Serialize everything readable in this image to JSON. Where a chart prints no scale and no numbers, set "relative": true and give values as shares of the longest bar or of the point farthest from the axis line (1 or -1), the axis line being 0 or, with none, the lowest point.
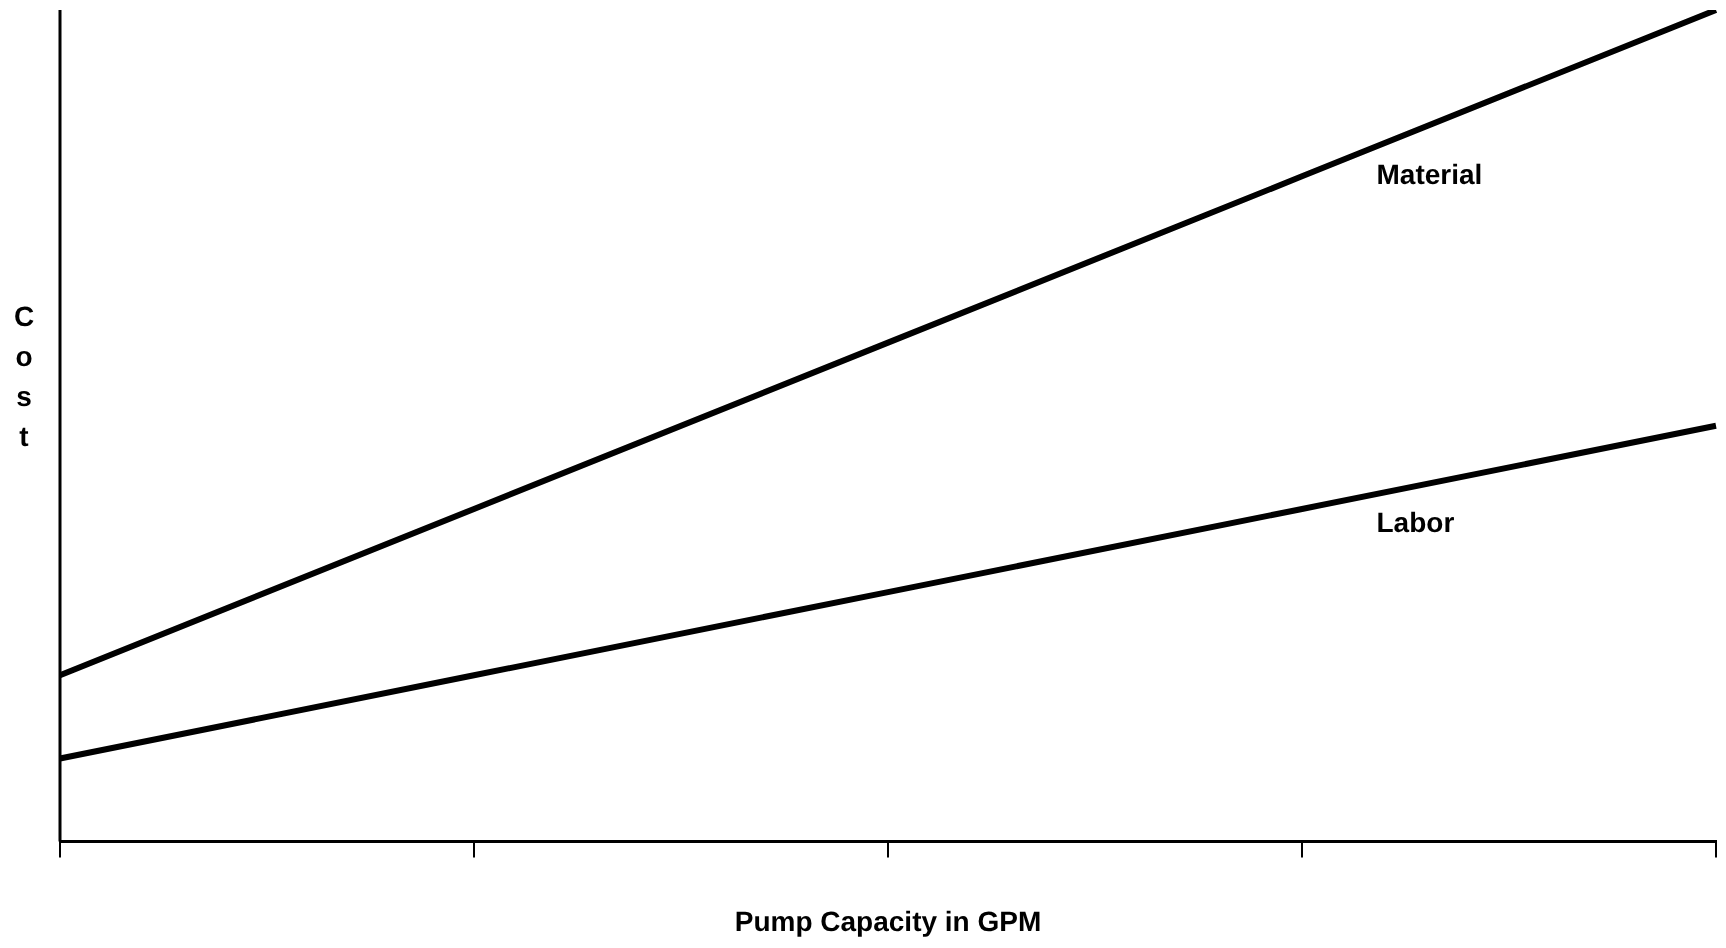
{
  "chart_data": {
    "type": "line",
    "relative": true,
    "xlabel": "Pump Capacity in GPM",
    "ylabel": "Cost",
    "categories": [
      null,
      null,
      null,
      null,
      null
    ],
    "series": [
      {
        "name": "Material",
        "color": "#000000",
        "values": [
          0.2,
          0.4,
          0.6,
          0.8,
          1.0
        ]
      },
      {
        "name": "Labor",
        "color": "#000000",
        "values": [
          0.1,
          0.2,
          0.3,
          0.4,
          0.5
        ]
      }
    ],
    "legend": false,
    "grid": false,
    "marker": "none",
    "line_style": "solid"
  }
}
